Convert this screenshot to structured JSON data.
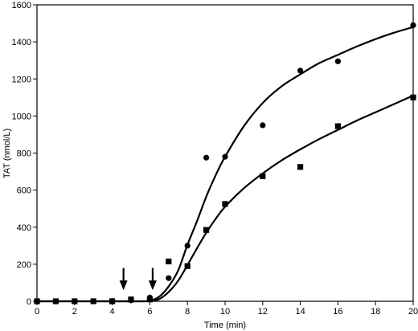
{
  "chart_data": {
    "type": "scatter",
    "xlabel": "Time (min)",
    "ylabel": "TAT (nmol/L)",
    "xlim": [
      0,
      20
    ],
    "ylim": [
      0,
      1600
    ],
    "xticks": [
      0,
      2,
      4,
      6,
      8,
      10,
      12,
      14,
      16,
      18,
      20
    ],
    "yticks": [
      0,
      200,
      400,
      600,
      800,
      1000,
      1200,
      1400,
      1600
    ],
    "grid": false,
    "series": [
      {
        "marker": "circle",
        "points": [
          [
            0,
            0
          ],
          [
            1,
            0
          ],
          [
            2,
            0
          ],
          [
            3,
            0
          ],
          [
            4,
            2
          ],
          [
            5,
            5
          ],
          [
            6,
            20
          ],
          [
            7,
            125
          ],
          [
            8,
            300
          ],
          [
            9,
            775
          ],
          [
            10,
            780
          ],
          [
            12,
            950
          ],
          [
            14,
            1245
          ],
          [
            16,
            1295
          ],
          [
            20,
            1490
          ]
        ],
        "fit": [
          [
            0,
            0
          ],
          [
            4,
            0
          ],
          [
            5.5,
            0
          ],
          [
            6,
            3
          ],
          [
            6.5,
            25
          ],
          [
            7,
            80
          ],
          [
            7.5,
            165
          ],
          [
            8,
            305
          ],
          [
            8.5,
            430
          ],
          [
            9,
            565
          ],
          [
            9.5,
            680
          ],
          [
            10,
            780
          ],
          [
            11,
            945
          ],
          [
            12,
            1070
          ],
          [
            13,
            1160
          ],
          [
            14,
            1225
          ],
          [
            15,
            1285
          ],
          [
            16,
            1330
          ],
          [
            17,
            1375
          ],
          [
            18,
            1415
          ],
          [
            19,
            1450
          ],
          [
            20,
            1480
          ]
        ]
      },
      {
        "marker": "square",
        "points": [
          [
            0,
            0
          ],
          [
            1,
            0
          ],
          [
            2,
            0
          ],
          [
            3,
            0
          ],
          [
            4,
            0
          ],
          [
            5,
            10
          ],
          [
            6,
            10
          ],
          [
            7,
            215
          ],
          [
            8,
            190
          ],
          [
            9,
            385
          ],
          [
            10,
            525
          ],
          [
            12,
            675
          ],
          [
            14,
            725
          ],
          [
            16,
            945
          ],
          [
            20,
            1100
          ]
        ],
        "fit": [
          [
            0,
            0
          ],
          [
            5.5,
            0
          ],
          [
            6,
            2
          ],
          [
            6.5,
            12
          ],
          [
            7,
            50
          ],
          [
            7.5,
            110
          ],
          [
            8,
            195
          ],
          [
            8.5,
            285
          ],
          [
            9,
            370
          ],
          [
            9.5,
            445
          ],
          [
            10,
            510
          ],
          [
            11,
            610
          ],
          [
            12,
            690
          ],
          [
            13,
            760
          ],
          [
            14,
            820
          ],
          [
            15,
            875
          ],
          [
            16,
            925
          ],
          [
            17,
            975
          ],
          [
            18,
            1020
          ],
          [
            19,
            1065
          ],
          [
            20,
            1110
          ]
        ]
      }
    ],
    "annotations": [
      {
        "type": "arrow-down",
        "x": 4.6,
        "y_from": 180,
        "y_to": 60
      },
      {
        "type": "arrow-down",
        "x": 6.15,
        "y_from": 180,
        "y_to": 60
      }
    ]
  }
}
